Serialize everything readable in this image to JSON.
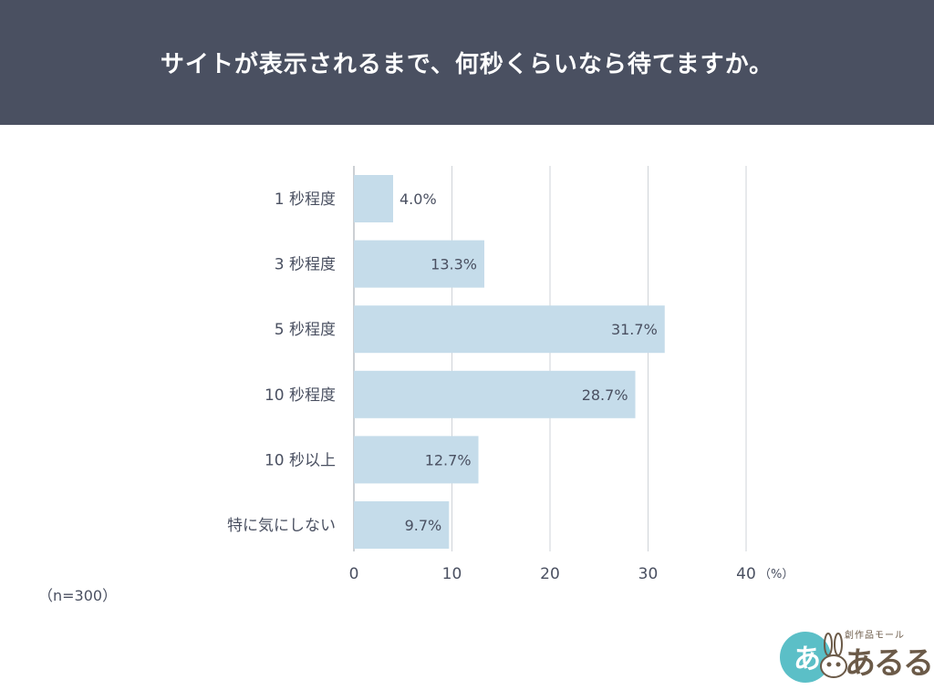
{
  "header": {
    "title": "サイトが表示されるまで、何秒くらいなら待てますか。"
  },
  "sample_note": "（n=300）",
  "logo": {
    "tag": "創作品モール",
    "word": "あるる",
    "badge_text": "あ"
  },
  "colors": {
    "header_bg": "#4a5061",
    "bar": "#c5dcea",
    "text": "#4a5061",
    "grid": "#cfd3d8",
    "logo_teal": "#5bbfc7",
    "logo_brown": "#6b5a48"
  },
  "chart_data": {
    "type": "bar",
    "orientation": "horizontal",
    "categories": [
      "1 秒程度",
      "3 秒程度",
      "5 秒程度",
      "10 秒程度",
      "10 秒以上",
      "特に気にしない"
    ],
    "values": [
      4.0,
      13.3,
      31.7,
      28.7,
      12.7,
      9.7
    ],
    "value_labels": [
      "4.0%",
      "13.3%",
      "31.7%",
      "28.7%",
      "12.7%",
      "9.7%"
    ],
    "xlim": [
      0,
      40
    ],
    "xticks": [
      0,
      10,
      20,
      30,
      40
    ],
    "xtick_labels": [
      "0",
      "10",
      "20",
      "30",
      "40"
    ],
    "x_unit": "（%）",
    "grid": true
  }
}
